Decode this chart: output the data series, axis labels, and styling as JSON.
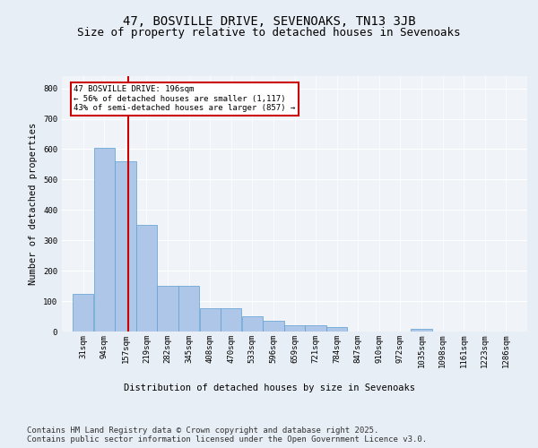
{
  "title": "47, BOSVILLE DRIVE, SEVENOAKS, TN13 3JB",
  "subtitle": "Size of property relative to detached houses in Sevenoaks",
  "xlabel": "Distribution of detached houses by size in Sevenoaks",
  "ylabel": "Number of detached properties",
  "bins": [
    "31sqm",
    "94sqm",
    "157sqm",
    "219sqm",
    "282sqm",
    "345sqm",
    "408sqm",
    "470sqm",
    "533sqm",
    "596sqm",
    "659sqm",
    "721sqm",
    "784sqm",
    "847sqm",
    "910sqm",
    "972sqm",
    "1035sqm",
    "1098sqm",
    "1161sqm",
    "1223sqm",
    "1286sqm"
  ],
  "bin_edges": [
    31,
    94,
    157,
    219,
    282,
    345,
    408,
    470,
    533,
    596,
    659,
    721,
    784,
    847,
    910,
    972,
    1035,
    1098,
    1161,
    1223,
    1286
  ],
  "values": [
    125,
    605,
    560,
    350,
    150,
    150,
    78,
    78,
    50,
    35,
    20,
    20,
    15,
    0,
    0,
    0,
    10,
    0,
    0,
    0,
    0
  ],
  "bar_color": "#aec6e8",
  "bar_edge_color": "#5a9fd4",
  "vline_x": 196,
  "vline_color": "#cc0000",
  "annotation_text": "47 BOSVILLE DRIVE: 196sqm\n← 56% of detached houses are smaller (1,117)\n43% of semi-detached houses are larger (857) →",
  "annotation_box_color": "#ffffff",
  "annotation_box_edge": "#cc0000",
  "ylim": [
    0,
    840
  ],
  "yticks": [
    0,
    100,
    200,
    300,
    400,
    500,
    600,
    700,
    800
  ],
  "bg_color": "#e8eef5",
  "plot_bg_color": "#f0f4f9",
  "footer": "Contains HM Land Registry data © Crown copyright and database right 2025.\nContains public sector information licensed under the Open Government Licence v3.0.",
  "title_fontsize": 10,
  "subtitle_fontsize": 9,
  "label_fontsize": 7.5,
  "tick_fontsize": 6.5,
  "footer_fontsize": 6.5
}
